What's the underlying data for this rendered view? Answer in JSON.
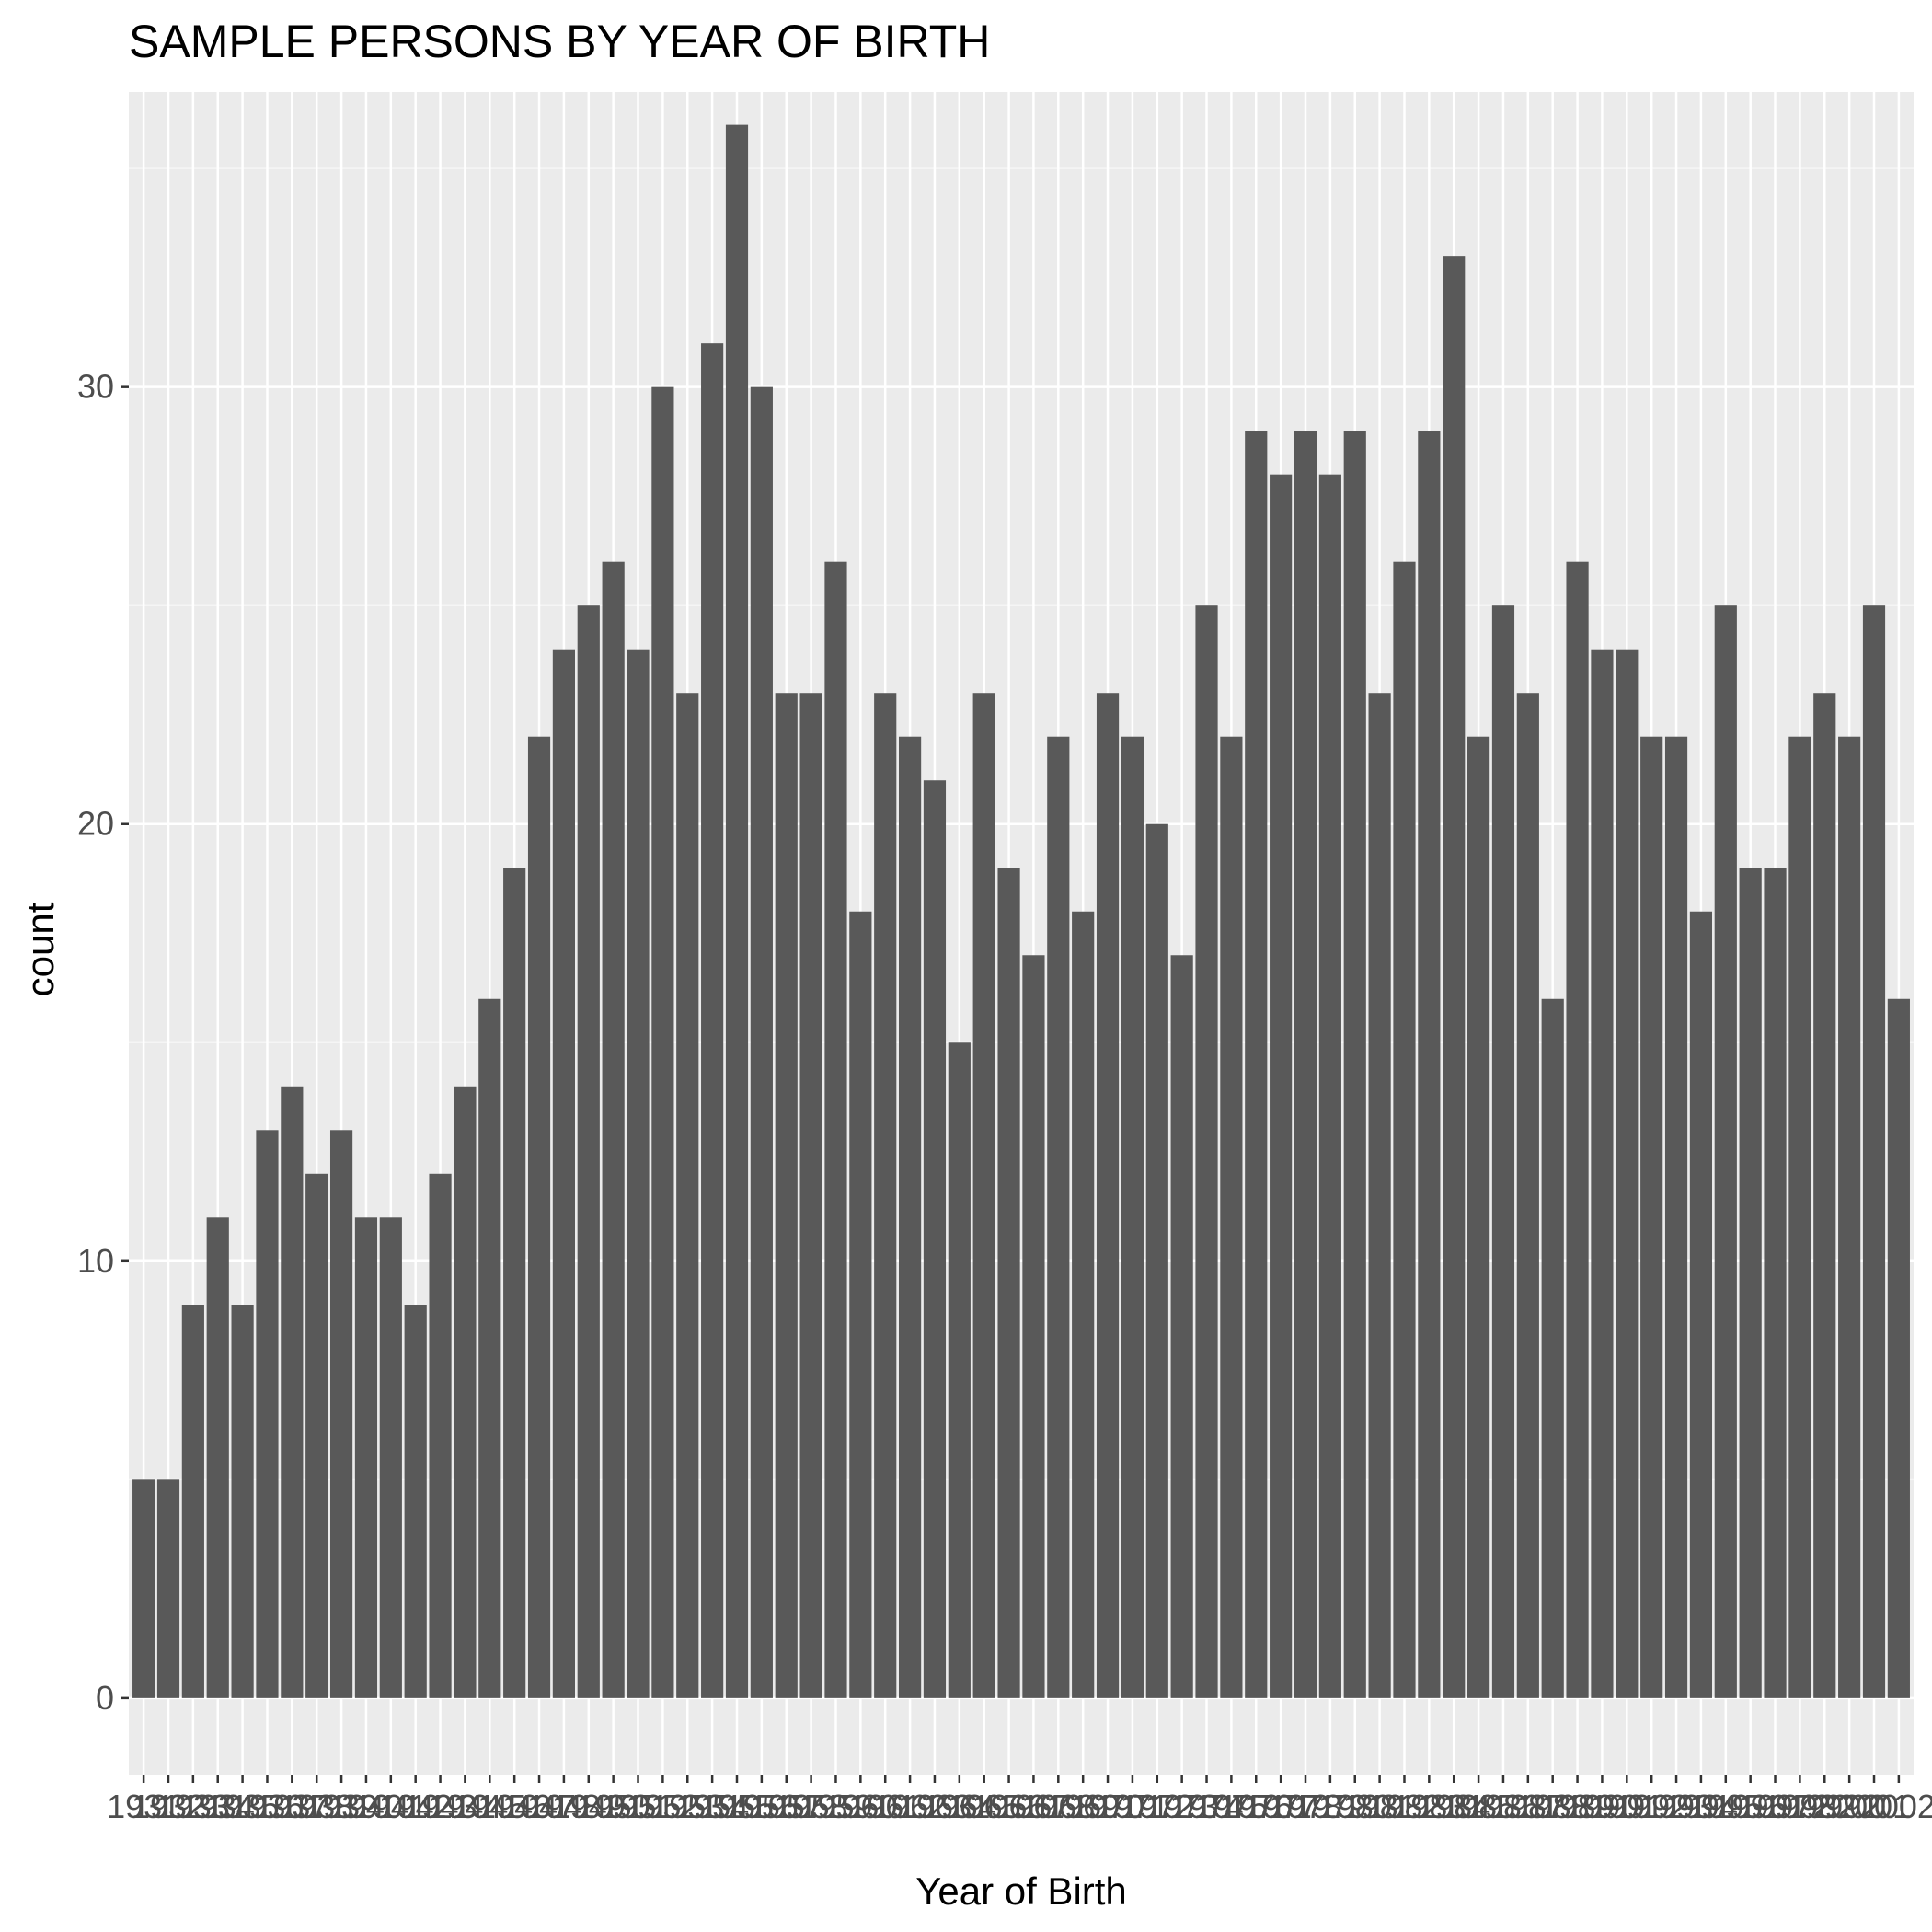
{
  "chart_data": {
    "type": "bar",
    "title": "SAMPLE PERSONS BY YEAR OF BIRTH",
    "xlabel": "Year of Birth",
    "ylabel": "count",
    "ylim": [
      -1.75,
      36.75
    ],
    "yticks": [
      0,
      10,
      20,
      30
    ],
    "grid": true,
    "categories": [
      "1931",
      "1932",
      "1933",
      "1934",
      "1935",
      "1936",
      "1937",
      "1938",
      "1939",
      "1940",
      "1941",
      "1942",
      "1943",
      "1944",
      "1945",
      "1946",
      "1947",
      "1948",
      "1949",
      "1950",
      "1951",
      "1952",
      "1953",
      "1954",
      "1955",
      "1956",
      "1957",
      "1958",
      "1959",
      "1960",
      "1961",
      "1962",
      "1963",
      "1964",
      "1965",
      "1966",
      "1967",
      "1968",
      "1969",
      "1970",
      "1971",
      "1972",
      "1973",
      "1974",
      "1975",
      "1976",
      "1977",
      "1978",
      "1979",
      "1980",
      "1981",
      "1982",
      "1983",
      "1984",
      "1985",
      "1986",
      "1987",
      "1988",
      "1989",
      "1990",
      "1991",
      "1992",
      "1993",
      "1994",
      "1995",
      "1996",
      "1997",
      "1998",
      "1999",
      "2000",
      "2001",
      "2002"
    ],
    "values": [
      5,
      5,
      9,
      11,
      9,
      13,
      14,
      12,
      13,
      11,
      11,
      9,
      12,
      14,
      16,
      19,
      22,
      24,
      25,
      26,
      24,
      30,
      23,
      31,
      36,
      30,
      23,
      23,
      26,
      18,
      23,
      22,
      21,
      15,
      23,
      19,
      17,
      22,
      18,
      23,
      22,
      20,
      17,
      25,
      22,
      29,
      28,
      29,
      28,
      29,
      23,
      26,
      29,
      33,
      22,
      25,
      23,
      16,
      26,
      24,
      24,
      22,
      22,
      18,
      25,
      19,
      19,
      22,
      23,
      22,
      25,
      16
    ],
    "colors": {
      "panel": "#ebebeb",
      "grid_major": "#ffffff",
      "grid_minor": "#f5f5f5",
      "bar": "#595959",
      "tick": "#333333"
    }
  }
}
